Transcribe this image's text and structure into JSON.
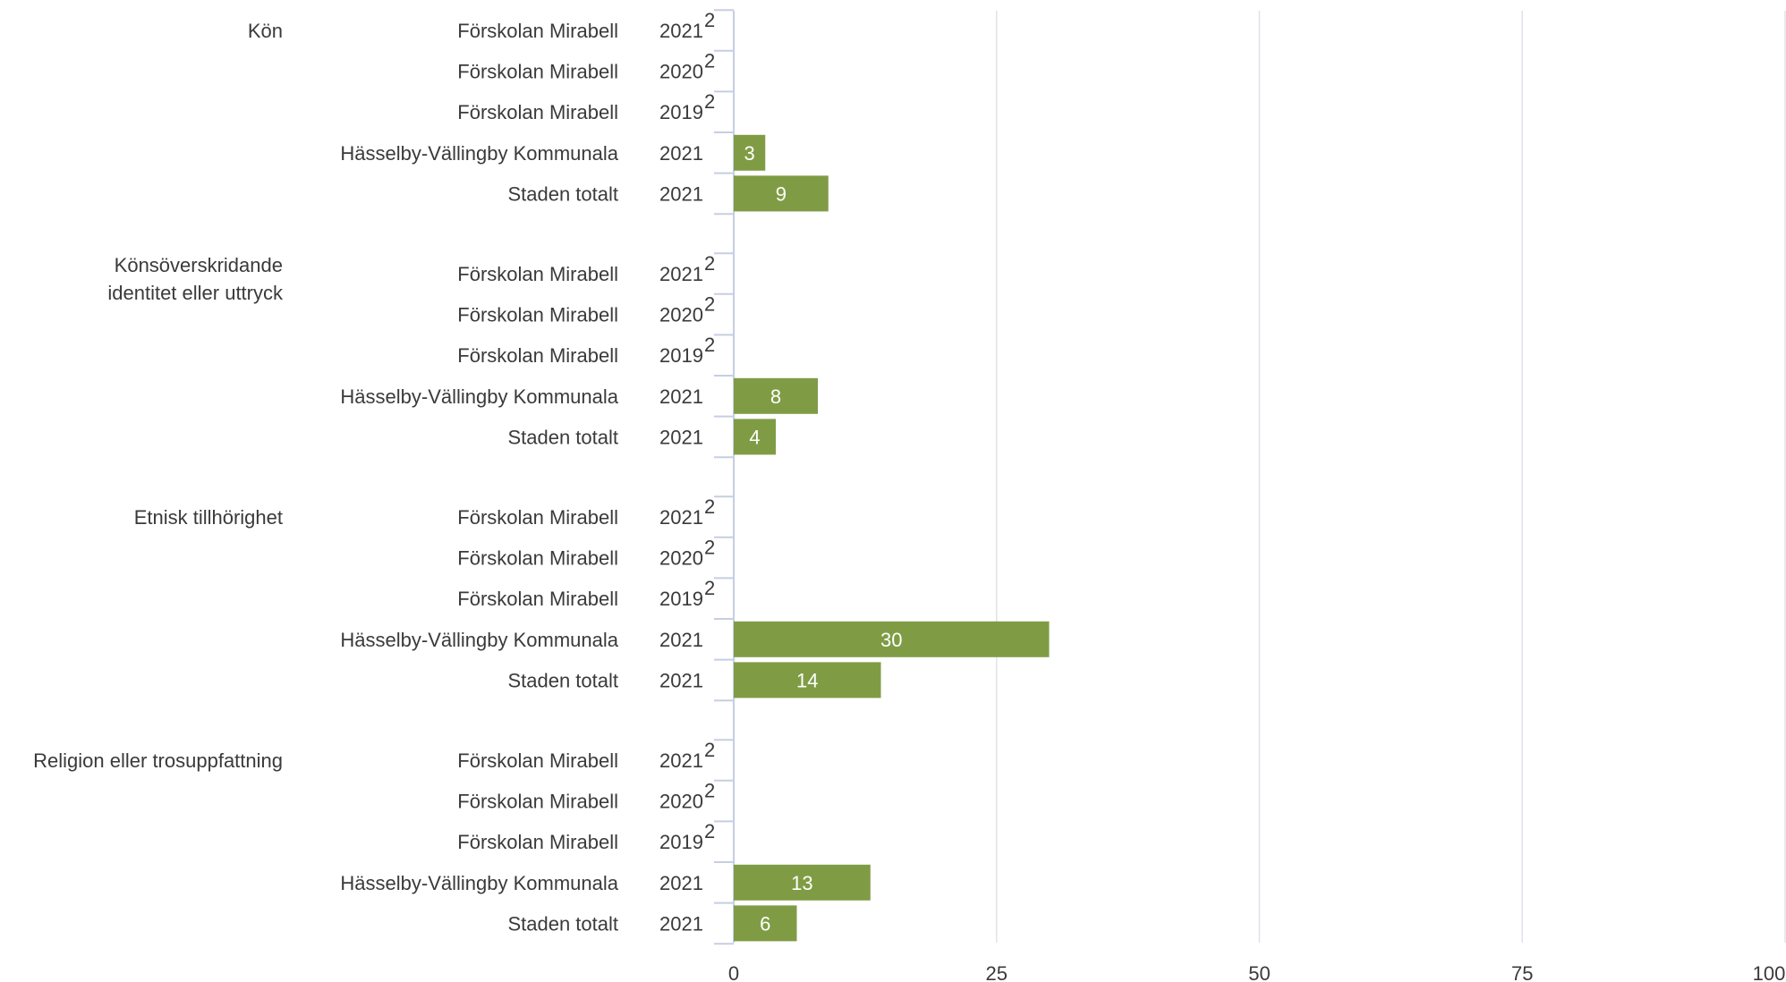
{
  "chart_data": {
    "type": "bar",
    "orientation": "horizontal",
    "xlim": [
      0,
      100
    ],
    "x_ticks": [
      0,
      25,
      50,
      75,
      100
    ],
    "grid": true,
    "bar_color": "#7f9c45",
    "axis_color": "#c5cfe0",
    "grid_color": "#dfe3ea",
    "text_color": "#3a3a3a",
    "label_color": "#ffffff",
    "groups": [
      {
        "label": "Kön",
        "rows": [
          {
            "name": "Förskolan Mirabell",
            "year": "2021",
            "note": "2",
            "value": null
          },
          {
            "name": "Förskolan Mirabell",
            "year": "2020",
            "note": "2",
            "value": null
          },
          {
            "name": "Förskolan Mirabell",
            "year": "2019",
            "note": "2",
            "value": null
          },
          {
            "name": "Hässelby-Vällingby Kommunala",
            "year": "2021",
            "note": "",
            "value": 3
          },
          {
            "name": "Staden totalt",
            "year": "2021",
            "note": "",
            "value": 9
          }
        ]
      },
      {
        "label": "Könsöverskridande identitet eller uttryck",
        "rows": [
          {
            "name": "Förskolan Mirabell",
            "year": "2021",
            "note": "2",
            "value": null
          },
          {
            "name": "Förskolan Mirabell",
            "year": "2020",
            "note": "2",
            "value": null
          },
          {
            "name": "Förskolan Mirabell",
            "year": "2019",
            "note": "2",
            "value": null
          },
          {
            "name": "Hässelby-Vällingby Kommunala",
            "year": "2021",
            "note": "",
            "value": 8
          },
          {
            "name": "Staden totalt",
            "year": "2021",
            "note": "",
            "value": 4
          }
        ]
      },
      {
        "label": "Etnisk tillhörighet",
        "rows": [
          {
            "name": "Förskolan Mirabell",
            "year": "2021",
            "note": "2",
            "value": null
          },
          {
            "name": "Förskolan Mirabell",
            "year": "2020",
            "note": "2",
            "value": null
          },
          {
            "name": "Förskolan Mirabell",
            "year": "2019",
            "note": "2",
            "value": null
          },
          {
            "name": "Hässelby-Vällingby Kommunala",
            "year": "2021",
            "note": "",
            "value": 30
          },
          {
            "name": "Staden totalt",
            "year": "2021",
            "note": "",
            "value": 14
          }
        ]
      },
      {
        "label": "Religion eller trosuppfattning",
        "rows": [
          {
            "name": "Förskolan Mirabell",
            "year": "2021",
            "note": "2",
            "value": null
          },
          {
            "name": "Förskolan Mirabell",
            "year": "2020",
            "note": "2",
            "value": null
          },
          {
            "name": "Förskolan Mirabell",
            "year": "2019",
            "note": "2",
            "value": null
          },
          {
            "name": "Hässelby-Vällingby Kommunala",
            "year": "2021",
            "note": "",
            "value": 13
          },
          {
            "name": "Staden totalt",
            "year": "2021",
            "note": "",
            "value": 6
          }
        ]
      }
    ]
  }
}
